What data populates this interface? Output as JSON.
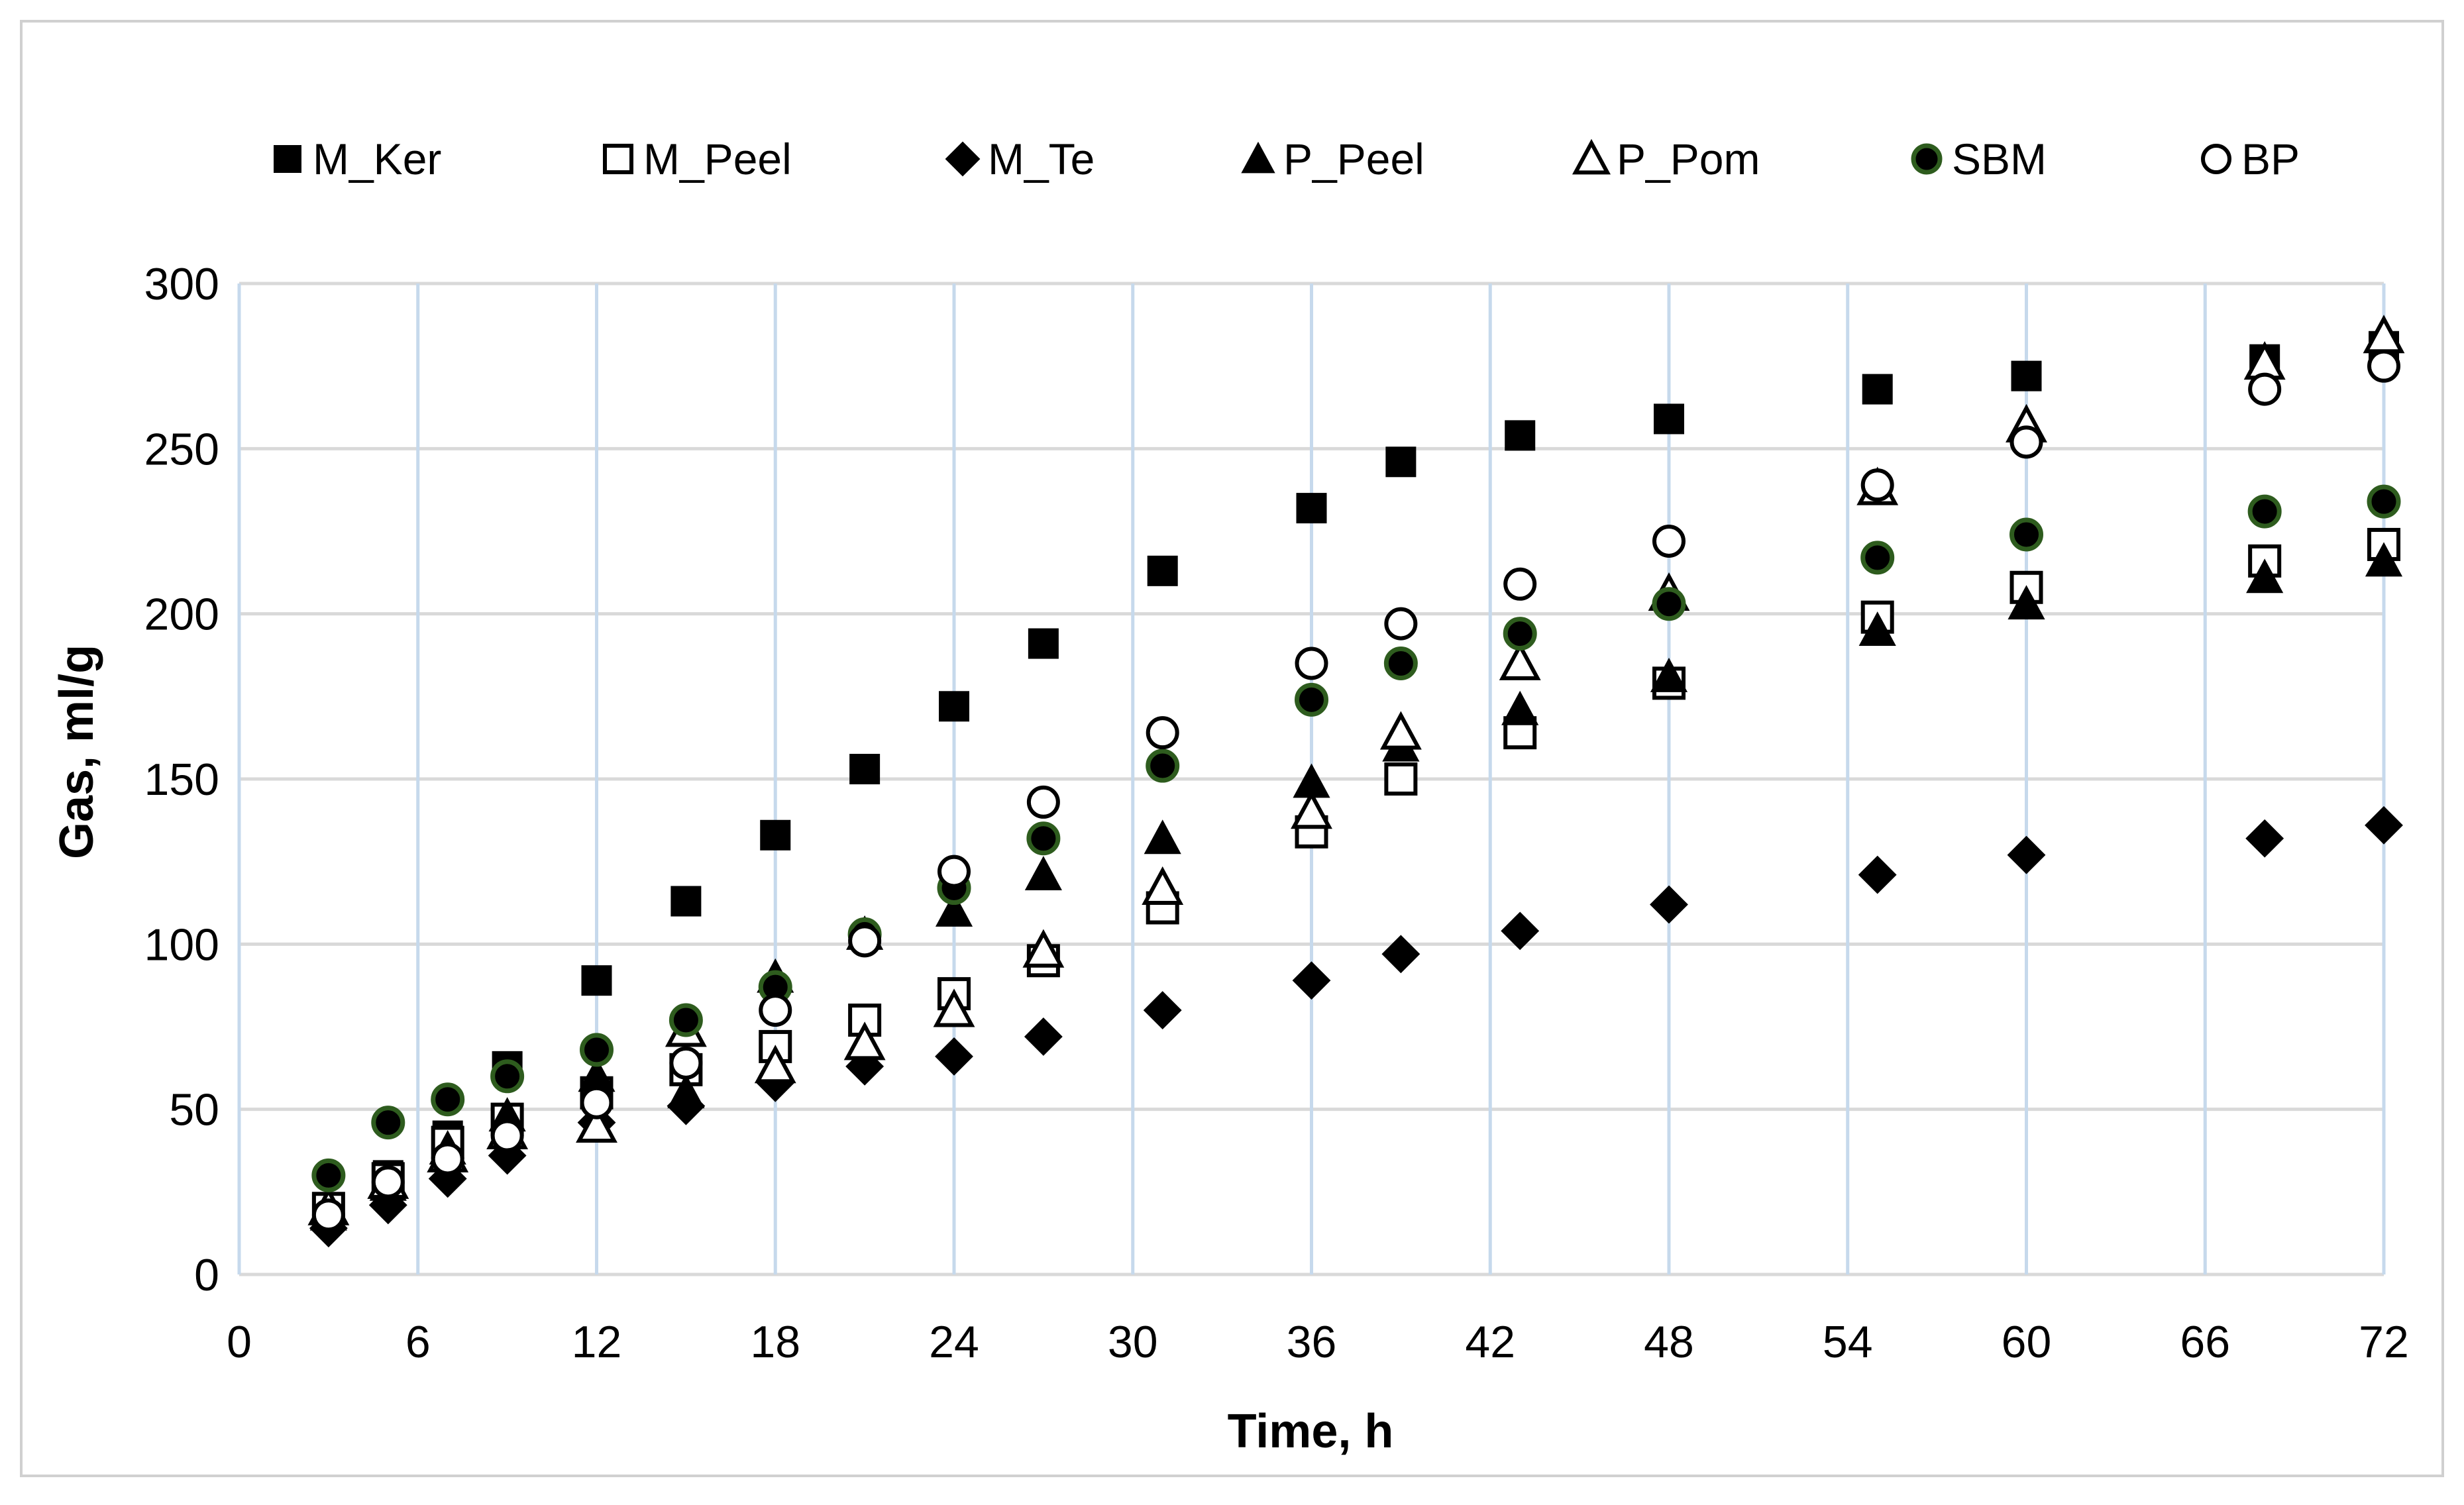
{
  "chart_data": {
    "type": "scatter",
    "title": "",
    "xlabel": "Time, h",
    "ylabel": "Gas, ml/g",
    "xlim": [
      0,
      72
    ],
    "ylim": [
      0,
      300
    ],
    "xticks": [
      0,
      6,
      12,
      18,
      24,
      30,
      36,
      42,
      48,
      54,
      60,
      66,
      72
    ],
    "yticks": [
      0,
      50,
      100,
      150,
      200,
      250,
      300
    ],
    "grid": true,
    "legend_position": "top",
    "x": [
      3,
      5,
      7,
      9,
      12,
      15,
      18,
      21,
      24,
      27,
      31,
      36,
      39,
      43,
      48,
      55,
      60,
      68,
      72
    ],
    "series": [
      {
        "name": "M_Ker",
        "marker": "square-filled",
        "color": "#000000",
        "values": [
          20,
          30,
          42,
          63,
          89,
          113,
          133,
          153,
          172,
          191,
          213,
          232,
          246,
          254,
          259,
          268,
          272,
          277,
          281
        ]
      },
      {
        "name": "M_Peel",
        "marker": "square-open",
        "color": "#000000",
        "values": [
          20,
          29,
          40,
          47,
          55,
          62,
          69,
          77,
          85,
          95,
          111,
          134,
          150,
          164,
          179,
          199,
          208,
          216,
          221
        ]
      },
      {
        "name": "M_Te",
        "marker": "diamond-filled",
        "color": "#000000",
        "values": [
          14,
          21,
          29,
          36,
          46,
          51,
          58,
          63,
          66,
          72,
          80,
          89,
          97,
          104,
          112,
          121,
          127,
          132,
          136
        ]
      },
      {
        "name": "P_Peel",
        "marker": "triangle-filled",
        "color": "#000000",
        "values": [
          18,
          27,
          38,
          48,
          60,
          55,
          90,
          103,
          110,
          121,
          132,
          149,
          160,
          171,
          181,
          195,
          203,
          211,
          216
        ]
      },
      {
        "name": "P_Pom",
        "marker": "triangle-open",
        "color": "#000000",
        "values": [
          20,
          28,
          36,
          43,
          45,
          74,
          63,
          70,
          80,
          98,
          117,
          140,
          164,
          185,
          206,
          238,
          257,
          276,
          284
        ]
      },
      {
        "name": "SBM",
        "marker": "circle-filled",
        "color": "#000000",
        "edge_color": "#2e5c1e",
        "values": [
          30,
          46,
          53,
          60,
          68,
          77,
          87,
          103,
          117,
          132,
          154,
          174,
          185,
          194,
          203,
          217,
          224,
          231,
          234
        ]
      },
      {
        "name": "BP",
        "marker": "circle-open",
        "color": "#000000",
        "values": [
          18,
          28,
          35,
          42,
          52,
          64,
          80,
          101,
          122,
          143,
          164,
          185,
          197,
          209,
          222,
          239,
          252,
          268,
          275
        ]
      }
    ]
  }
}
